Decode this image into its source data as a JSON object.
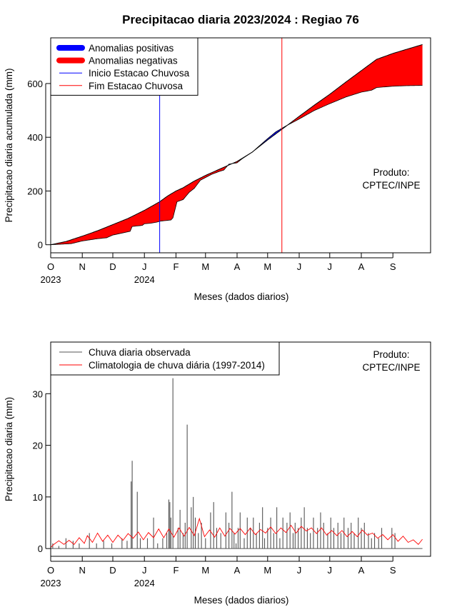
{
  "page": {
    "title": "Precipitacao diaria 2023/2024 : Regiao 76"
  },
  "chart_data": [
    {
      "type": "area",
      "xlabel": "Meses (dados diarios)",
      "ylabel": "Precipitacao diaria acumulada (mm)",
      "xlim": [
        0,
        373
      ],
      "ylim": [
        -30,
        770
      ],
      "yticks": [
        0,
        200,
        400,
        600
      ],
      "month_ticks": [
        {
          "day": 0,
          "label": "O",
          "year": "2023"
        },
        {
          "day": 31,
          "label": "N",
          "year": ""
        },
        {
          "day": 61,
          "label": "D",
          "year": ""
        },
        {
          "day": 92,
          "label": "J",
          "year": "2024"
        },
        {
          "day": 123,
          "label": "F",
          "year": ""
        },
        {
          "day": 152,
          "label": "M",
          "year": ""
        },
        {
          "day": 183,
          "label": "A",
          "year": ""
        },
        {
          "day": 213,
          "label": "M",
          "year": ""
        },
        {
          "day": 244,
          "label": "J",
          "year": ""
        },
        {
          "day": 274,
          "label": "J",
          "year": ""
        },
        {
          "day": 305,
          "label": "A",
          "year": ""
        },
        {
          "day": 336,
          "label": "S",
          "year": ""
        }
      ],
      "legend": {
        "position": "top-left",
        "entries": [
          {
            "label": "Anomalias positivas",
            "color": "#0000ff",
            "style": "thick"
          },
          {
            "label": "Anomalias negativas",
            "color": "#ff0000",
            "style": "thick"
          },
          {
            "label": "Inicio Estacao Chuvosa",
            "color": "#0000ff",
            "style": "thin"
          },
          {
            "label": "Fim Estacao Chuvosa",
            "color": "#ff0000",
            "style": "thin"
          }
        ]
      },
      "product_label": [
        "Produto:",
        "CPTEC/INPE"
      ],
      "vlines": [
        {
          "day": 107,
          "color": "#0000ff"
        },
        {
          "day": 227,
          "color": "#ff0000"
        }
      ],
      "series": [
        {
          "name": "Climatologia acumulada",
          "points": [
            [
              0,
              0
            ],
            [
              15,
              12
            ],
            [
              31,
              32
            ],
            [
              46,
              52
            ],
            [
              61,
              75
            ],
            [
              76,
              98
            ],
            [
              92,
              128
            ],
            [
              107,
              160
            ],
            [
              115,
              182
            ],
            [
              123,
              200
            ],
            [
              130,
              212
            ],
            [
              140,
              235
            ],
            [
              152,
              258
            ],
            [
              165,
              280
            ],
            [
              183,
              310
            ],
            [
              198,
              345
            ],
            [
              213,
              390
            ],
            [
              230,
              438
            ],
            [
              244,
              478
            ],
            [
              259,
              520
            ],
            [
              274,
              560
            ],
            [
              290,
              606
            ],
            [
              305,
              648
            ],
            [
              320,
              690
            ],
            [
              336,
              712
            ],
            [
              350,
              728
            ],
            [
              365,
              745
            ]
          ]
        },
        {
          "name": "Observado acumulado",
          "points": [
            [
              0,
              0
            ],
            [
              20,
              4
            ],
            [
              31,
              14
            ],
            [
              45,
              22
            ],
            [
              55,
              26
            ],
            [
              61,
              36
            ],
            [
              78,
              50
            ],
            [
              80,
              68
            ],
            [
              90,
              72
            ],
            [
              92,
              78
            ],
            [
              98,
              80
            ],
            [
              104,
              84
            ],
            [
              108,
              88
            ],
            [
              118,
              92
            ],
            [
              120,
              100
            ],
            [
              122,
              130
            ],
            [
              124,
              160
            ],
            [
              130,
              168
            ],
            [
              136,
              195
            ],
            [
              141,
              210
            ],
            [
              147,
              240
            ],
            [
              152,
              250
            ],
            [
              158,
              262
            ],
            [
              165,
              272
            ],
            [
              170,
              278
            ],
            [
              175,
              300
            ],
            [
              183,
              305
            ],
            [
              188,
              320
            ],
            [
              198,
              345
            ],
            [
              206,
              372
            ],
            [
              213,
              395
            ],
            [
              221,
              420
            ],
            [
              230,
              440
            ],
            [
              244,
              468
            ],
            [
              259,
              500
            ],
            [
              274,
              525
            ],
            [
              290,
              550
            ],
            [
              305,
              568
            ],
            [
              315,
              575
            ],
            [
              320,
              585
            ],
            [
              336,
              590
            ],
            [
              350,
              592
            ],
            [
              365,
              593
            ]
          ]
        }
      ]
    },
    {
      "type": "bar",
      "xlabel": "Meses (dados diarios)",
      "ylabel": "Precipitacao diaria (mm)",
      "xlim": [
        0,
        373
      ],
      "ylim": [
        -1.5,
        40
      ],
      "yticks": [
        0,
        10,
        20,
        30
      ],
      "month_ticks": [
        {
          "day": 0,
          "label": "O",
          "year": "2023"
        },
        {
          "day": 31,
          "label": "N",
          "year": ""
        },
        {
          "day": 61,
          "label": "D",
          "year": ""
        },
        {
          "day": 92,
          "label": "J",
          "year": "2024"
        },
        {
          "day": 123,
          "label": "F",
          "year": ""
        },
        {
          "day": 152,
          "label": "M",
          "year": ""
        },
        {
          "day": 183,
          "label": "A",
          "year": ""
        },
        {
          "day": 213,
          "label": "M",
          "year": ""
        },
        {
          "day": 244,
          "label": "J",
          "year": ""
        },
        {
          "day": 274,
          "label": "J",
          "year": ""
        },
        {
          "day": 305,
          "label": "A",
          "year": ""
        },
        {
          "day": 336,
          "label": "S",
          "year": ""
        }
      ],
      "legend": {
        "position": "top-left",
        "entries": [
          {
            "label": "Chuva diaria observada",
            "color": "#555555",
            "style": "thin"
          },
          {
            "label": "Climatologia de chuva diária (1997-2014)",
            "color": "#ff0000",
            "style": "thin"
          }
        ]
      },
      "product_label": [
        "Produto:",
        "CPTEC/INPE"
      ],
      "bars": {
        "name": "Chuva diaria observada",
        "color": "#555555",
        "days": [
          2,
          8,
          15,
          22,
          28,
          38,
          45,
          52,
          60,
          70,
          75,
          79,
          80,
          85,
          88,
          95,
          101,
          105,
          110,
          114,
          116,
          117,
          118,
          120,
          125,
          127,
          130,
          132,
          134,
          138,
          140,
          142,
          145,
          148,
          152,
          157,
          160,
          163,
          167,
          172,
          175,
          178,
          180,
          182,
          184,
          186,
          190,
          193,
          196,
          199,
          202,
          205,
          208,
          210,
          213,
          216,
          219,
          222,
          225,
          228,
          232,
          235,
          238,
          240,
          243,
          246,
          249,
          252,
          255,
          258,
          262,
          265,
          268,
          272,
          275,
          278,
          282,
          285,
          288,
          292,
          295,
          298,
          302,
          305,
          308,
          312,
          315,
          318,
          322,
          325,
          335,
          338
        ],
        "values": [
          1,
          0.5,
          2,
          1.5,
          1,
          3,
          1,
          1.5,
          1,
          2,
          1.5,
          13,
          17,
          11,
          2,
          2,
          6,
          1,
          2,
          3,
          9.5,
          9,
          6,
          33,
          4,
          7.5,
          3,
          5,
          24,
          8,
          10,
          6,
          3,
          5,
          2,
          7,
          9,
          4,
          3,
          7,
          5,
          11,
          3,
          1,
          4,
          7,
          2,
          6,
          4,
          6,
          3,
          5,
          8,
          2,
          4,
          6,
          3,
          8,
          2,
          6,
          5,
          7,
          3,
          5,
          4,
          6,
          8,
          4,
          3,
          6,
          4,
          7,
          5,
          3,
          6,
          4,
          5,
          3,
          6,
          4,
          5,
          3,
          6,
          4,
          5,
          3,
          2,
          3,
          2,
          4,
          4,
          3
        ]
      },
      "climatology": {
        "name": "Climatologia de chuva diária (1997-2014)",
        "color": "#ff0000",
        "points": [
          [
            0,
            0.2
          ],
          [
            3,
            0.8
          ],
          [
            8,
            1.5
          ],
          [
            13,
            0.8
          ],
          [
            18,
            1.6
          ],
          [
            23,
            0.8
          ],
          [
            28,
            2.1
          ],
          [
            33,
            1.0
          ],
          [
            36,
            2.5
          ],
          [
            41,
            1.2
          ],
          [
            46,
            3.0
          ],
          [
            51,
            1.4
          ],
          [
            56,
            2.6
          ],
          [
            61,
            1.2
          ],
          [
            66,
            2.6
          ],
          [
            71,
            1.6
          ],
          [
            76,
            2.9
          ],
          [
            81,
            2.0
          ],
          [
            86,
            3.2
          ],
          [
            91,
            1.7
          ],
          [
            96,
            3.1
          ],
          [
            101,
            2.1
          ],
          [
            106,
            3.8
          ],
          [
            111,
            2.1
          ],
          [
            116,
            3.8
          ],
          [
            121,
            2.2
          ],
          [
            126,
            4.0
          ],
          [
            131,
            2.4
          ],
          [
            136,
            4.1
          ],
          [
            141,
            2.5
          ],
          [
            146,
            5.8
          ],
          [
            151,
            2.3
          ],
          [
            156,
            3.6
          ],
          [
            161,
            2.2
          ],
          [
            166,
            4.0
          ],
          [
            171,
            2.4
          ],
          [
            176,
            3.9
          ],
          [
            181,
            2.8
          ],
          [
            186,
            3.9
          ],
          [
            191,
            2.7
          ],
          [
            196,
            4.0
          ],
          [
            201,
            2.7
          ],
          [
            206,
            3.7
          ],
          [
            211,
            3.0
          ],
          [
            216,
            4.2
          ],
          [
            221,
            2.9
          ],
          [
            226,
            4.0
          ],
          [
            231,
            3.1
          ],
          [
            236,
            4.5
          ],
          [
            241,
            3.0
          ],
          [
            246,
            4.3
          ],
          [
            251,
            3.4
          ],
          [
            256,
            4.0
          ],
          [
            261,
            2.9
          ],
          [
            266,
            4.0
          ],
          [
            271,
            2.6
          ],
          [
            276,
            3.5
          ],
          [
            281,
            2.5
          ],
          [
            286,
            3.5
          ],
          [
            291,
            2.3
          ],
          [
            296,
            3.3
          ],
          [
            301,
            2.3
          ],
          [
            306,
            3.6
          ],
          [
            311,
            2.6
          ],
          [
            316,
            3.0
          ],
          [
            321,
            2.0
          ],
          [
            326,
            2.7
          ],
          [
            331,
            1.7
          ],
          [
            336,
            2.7
          ],
          [
            341,
            1.4
          ],
          [
            346,
            2.4
          ],
          [
            351,
            1.2
          ],
          [
            356,
            1.7
          ],
          [
            361,
            0.8
          ],
          [
            365,
            1.8
          ]
        ]
      }
    }
  ]
}
